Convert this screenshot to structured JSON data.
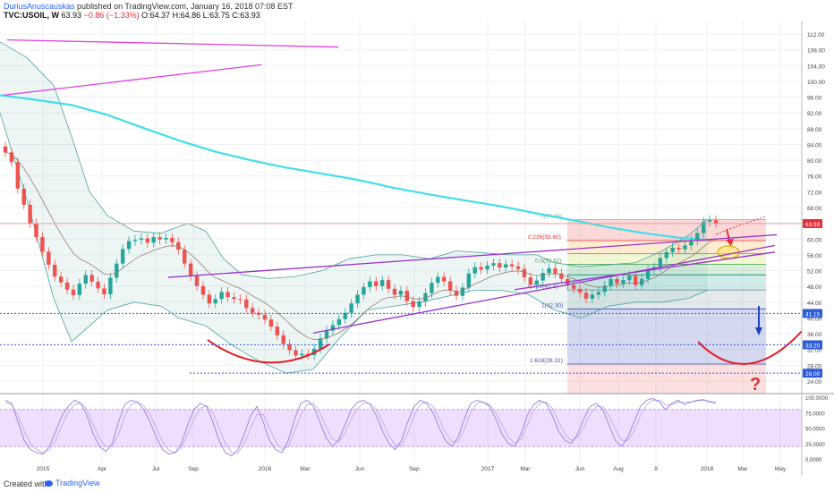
{
  "header": {
    "author": "DuriusAnuscauskas",
    "published": " published on TradingView.com, January 16, 2018 07:08 EST",
    "symbol": "TVC:USOIL, W",
    "last": "63.93",
    "change": "−0.86 (−1.33%)",
    "ohlc": "O:64.37 H:64.86 L:63.75 C:63.93"
  },
  "footer": {
    "created": "Created with",
    "brand": "TradingView"
  },
  "colors": {
    "up": "#26a69a",
    "down": "#ef5350",
    "ma": "#40e0e8",
    "bollinger": "#4aa3a0",
    "channel": "#9933cc",
    "magenta": "#e040e0",
    "arcs": "#e0202a",
    "stoch_k": "#9b7fd8",
    "stoch_d": "#c3a9e8",
    "support_line": "#2e5bd8"
  },
  "chart_data": [
    {
      "type": "candlestick",
      "title": "TVC:USOIL, W",
      "ylim": [
        22,
        114
      ],
      "y_ticks": [
        "112.00",
        "108.00",
        "104.00",
        "100.00",
        "96.00",
        "92.00",
        "88.00",
        "84.00",
        "80.00",
        "76.00",
        "72.00",
        "68.00",
        "64.00",
        "60.00",
        "56.00",
        "52.00",
        "48.00",
        "44.00",
        "40.00",
        "36.00",
        "32.00",
        "28.00",
        "24.00"
      ],
      "x_ticks": [
        "2015",
        "Apr",
        "Jul",
        "Sep",
        "2016",
        "Mar",
        "Jun",
        "Sep",
        "2017",
        "Mar",
        "Jun",
        "Aug",
        "9",
        "2018",
        "Mar",
        "May"
      ],
      "close": [
        82.0,
        79.5,
        72.8,
        68.7,
        64.0,
        60.5,
        56.8,
        53.5,
        50.5,
        49.0,
        47.2,
        45.8,
        48.7,
        50.9,
        49.2,
        47.5,
        46.0,
        50.2,
        53.8,
        57.5,
        59.5,
        59.8,
        60.2,
        59.1,
        60.5,
        59.9,
        60.3,
        59.2,
        57.3,
        53.8,
        50.6,
        48.1,
        45.9,
        43.7,
        44.8,
        46.6,
        45.3,
        44.8,
        44.7,
        42.5,
        41.3,
        40.8,
        39.6,
        37.8,
        35.6,
        33.4,
        31.8,
        30.5,
        30.9,
        30.6,
        32.2,
        34.8,
        36.8,
        38.2,
        39.7,
        41.3,
        43.7,
        45.9,
        47.8,
        49.3,
        48.1,
        49.6,
        47.4,
        45.9,
        46.9,
        44.3,
        42.8,
        44.2,
        46.3,
        48.9,
        50.4,
        49.3,
        46.9,
        45.6,
        47.7,
        51.3,
        52.9,
        52.3,
        53.3,
        53.9,
        52.8,
        53.6,
        53.1,
        52.4,
        50.3,
        48.4,
        49.5,
        51.4,
        52.6,
        51.3,
        49.9,
        48.3,
        47.4,
        46.4,
        44.9,
        45.9,
        46.6,
        48.2,
        49.9,
        48.7,
        49.6,
        50.7,
        48.3,
        49.9,
        52.2,
        52.9,
        55.2,
        56.7,
        57.8,
        57.4,
        58.4,
        59.6,
        61.5,
        64.4,
        64.8,
        63.93
      ],
      "moving_average": [
        [
          0,
          96.5
        ],
        [
          40,
          95.3
        ],
        [
          80,
          94.0
        ],
        [
          120,
          91.5
        ],
        [
          160,
          88.2
        ],
        [
          200,
          85.0
        ],
        [
          240,
          82.2
        ],
        [
          280,
          80.0
        ],
        [
          320,
          78.1
        ],
        [
          360,
          76.6
        ],
        [
          400,
          75.0
        ],
        [
          440,
          73.0
        ],
        [
          480,
          71.3
        ],
        [
          520,
          69.8
        ],
        [
          560,
          68.3
        ],
        [
          600,
          66.5
        ],
        [
          640,
          64.8
        ],
        [
          680,
          63.0
        ],
        [
          720,
          61.5
        ],
        [
          760,
          60.3
        ],
        [
          790,
          59.8
        ]
      ],
      "bollinger_upper": [
        [
          0,
          110
        ],
        [
          30,
          106
        ],
        [
          60,
          99
        ],
        [
          80,
          86
        ],
        [
          100,
          72
        ],
        [
          120,
          66
        ],
        [
          150,
          62
        ],
        [
          180,
          61.5
        ],
        [
          210,
          64
        ],
        [
          230,
          62
        ],
        [
          250,
          55
        ],
        [
          270,
          51
        ],
        [
          300,
          50
        ],
        [
          330,
          50.5
        ],
        [
          360,
          52
        ],
        [
          390,
          55
        ],
        [
          420,
          56
        ],
        [
          450,
          56
        ],
        [
          480,
          55
        ],
        [
          510,
          57
        ],
        [
          540,
          56.5
        ],
        [
          570,
          56
        ],
        [
          600,
          56
        ],
        [
          620,
          54
        ],
        [
          650,
          53
        ],
        [
          680,
          53.5
        ],
        [
          710,
          54
        ],
        [
          740,
          57
        ],
        [
          770,
          61
        ],
        [
          790,
          65
        ]
      ],
      "bollinger_lower": [
        [
          0,
          92
        ],
        [
          30,
          70
        ],
        [
          60,
          45
        ],
        [
          80,
          34
        ],
        [
          100,
          38
        ],
        [
          120,
          42
        ],
        [
          150,
          44
        ],
        [
          180,
          43
        ],
        [
          200,
          40
        ],
        [
          230,
          38
        ],
        [
          260,
          33
        ],
        [
          290,
          29
        ],
        [
          320,
          26
        ],
        [
          350,
          27
        ],
        [
          380,
          35
        ],
        [
          410,
          42
        ],
        [
          440,
          43
        ],
        [
          470,
          44
        ],
        [
          500,
          45.5
        ],
        [
          530,
          47
        ],
        [
          560,
          47
        ],
        [
          590,
          46
        ],
        [
          620,
          42
        ],
        [
          650,
          40
        ],
        [
          680,
          43
        ],
        [
          710,
          44
        ],
        [
          740,
          44
        ],
        [
          770,
          45
        ],
        [
          790,
          47
        ]
      ],
      "lines": [
        {
          "type": "trend-magenta-upper",
          "points": [
            [
              8,
              110.5
            ],
            [
              378,
              108.7
            ]
          ]
        },
        {
          "type": "trend-magenta-lower",
          "points": [
            [
              4,
              96.5
            ],
            [
              292,
              104.2
            ]
          ]
        },
        {
          "type": "channel-top",
          "points": [
            [
              188,
              50.3
            ],
            [
              868,
              61.1
            ]
          ]
        },
        {
          "type": "channel-bottom",
          "points": [
            [
              350,
              36.2
            ],
            [
              866,
              58.4
            ]
          ]
        },
        {
          "type": "channel-inner",
          "points": [
            [
              575,
              47.2
            ],
            [
              866,
              56.7
            ]
          ]
        },
        {
          "type": "support-41",
          "price": 41.15
        },
        {
          "type": "support-33",
          "price": 33.2
        },
        {
          "type": "support-26",
          "price": 26.0
        }
      ],
      "fibonacci": {
        "x_range": [
          634,
          856
        ],
        "levels": [
          {
            "ratio": "0",
            "price": 64.94,
            "label": "0(64.94)"
          },
          {
            "ratio": "0.236",
            "price": 59.6,
            "label": "0.236(59.60)"
          },
          {
            "ratio": "0.382",
            "price": 56.3
          },
          {
            "ratio": "0.5",
            "price": 53.62,
            "label": "0.5(53.62)"
          },
          {
            "ratio": "0.618",
            "price": 50.95
          },
          {
            "ratio": "0.786",
            "price": 47.1,
            "label": "0.786(47.1)"
          },
          {
            "ratio": "1",
            "price": 42.3,
            "label": "1(42.30)"
          },
          {
            "ratio": "1.618",
            "price": 28.31,
            "label": "1.618(28.31)"
          }
        ]
      },
      "price_badges": [
        {
          "label": "63.93",
          "price": 63.93,
          "color": "#e0313a"
        },
        {
          "label": "41.15",
          "price": 41.15,
          "color": "#2e5bd8"
        },
        {
          "label": "33.20",
          "price": 33.2,
          "color": "#2e5bd8"
        },
        {
          "label": "26.00",
          "price": 26.0,
          "color": "#2e5bd8"
        }
      ],
      "annotations": [
        {
          "text": "?",
          "color": "#e0313a"
        }
      ]
    },
    {
      "type": "line",
      "ylim": [
        0,
        100
      ],
      "y_ticks": [
        "100.0000",
        "75.0000",
        "50.0000",
        "25.0000",
        "0.0000"
      ],
      "series": [
        {
          "values": [
            95,
            90,
            60,
            30,
            15,
            10,
            8,
            20,
            45,
            70,
            85,
            95,
            90,
            70,
            40,
            20,
            12,
            25,
            60,
            88,
            95,
            92,
            80,
            60,
            35,
            15,
            8,
            10,
            25,
            55,
            80,
            90,
            85,
            60,
            30,
            10,
            5,
            15,
            40,
            70,
            85,
            60,
            30,
            15,
            10,
            30,
            65,
            90,
            95,
            85,
            60,
            35,
            20,
            30,
            55,
            80,
            92,
            95,
            88,
            70,
            45,
            25,
            15,
            30,
            60,
            85,
            95,
            90,
            75,
            50,
            30,
            20,
            35,
            65,
            90,
            95,
            92,
            85,
            65,
            40,
            25,
            20,
            40,
            70,
            88,
            95,
            90,
            70,
            45,
            30,
            25,
            40,
            65,
            85,
            90,
            80,
            55,
            30,
            20,
            35,
            60,
            85,
            95,
            98,
            92,
            80,
            90,
            95,
            88,
            92,
            95,
            96,
            92,
            90
          ]
        },
        {
          "values": [
            92,
            88,
            70,
            45,
            25,
            15,
            10,
            15,
            30,
            55,
            75,
            88,
            90,
            80,
            55,
            32,
            20,
            20,
            40,
            70,
            88,
            92,
            86,
            72,
            50,
            28,
            14,
            10,
            18,
            40,
            65,
            82,
            86,
            75,
            50,
            25,
            10,
            10,
            25,
            50,
            72,
            72,
            50,
            28,
            15,
            20,
            45,
            72,
            88,
            90,
            75,
            52,
            32,
            28,
            42,
            65,
            82,
            90,
            90,
            80,
            60,
            38,
            22,
            22,
            42,
            70,
            88,
            92,
            85,
            65,
            42,
            28,
            28,
            48,
            75,
            90,
            92,
            88,
            75,
            55,
            35,
            25,
            32,
            55,
            78,
            90,
            92,
            82,
            60,
            40,
            30,
            35,
            52,
            72,
            85,
            85,
            70,
            48,
            30,
            30,
            45,
            70,
            88,
            95,
            95,
            88,
            88,
            92,
            92,
            92,
            94,
            95,
            94,
            92
          ]
        }
      ]
    }
  ]
}
